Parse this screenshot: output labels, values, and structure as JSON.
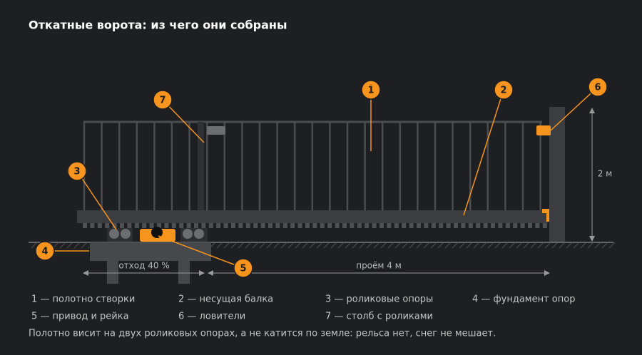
{
  "title": "Откатные ворота: из чего они собраны",
  "callouts": [
    "1",
    "2",
    "3",
    "4",
    "5",
    "6",
    "7"
  ],
  "dimensions": {
    "height": "2 м",
    "setback": "отход 40 %",
    "opening": "проём 4 м"
  },
  "legend": [
    "1 — полотно створки",
    "2 — несущая балка",
    "3 — роликовые опоры",
    "4 — фундамент опор",
    "5 — привод и рейка",
    "6 — ловители",
    "7 — столб с роликами"
  ],
  "note": "Полотно висит на двух роликовых опорах, а не катится по земле: рельса нет, снег не мешает."
}
